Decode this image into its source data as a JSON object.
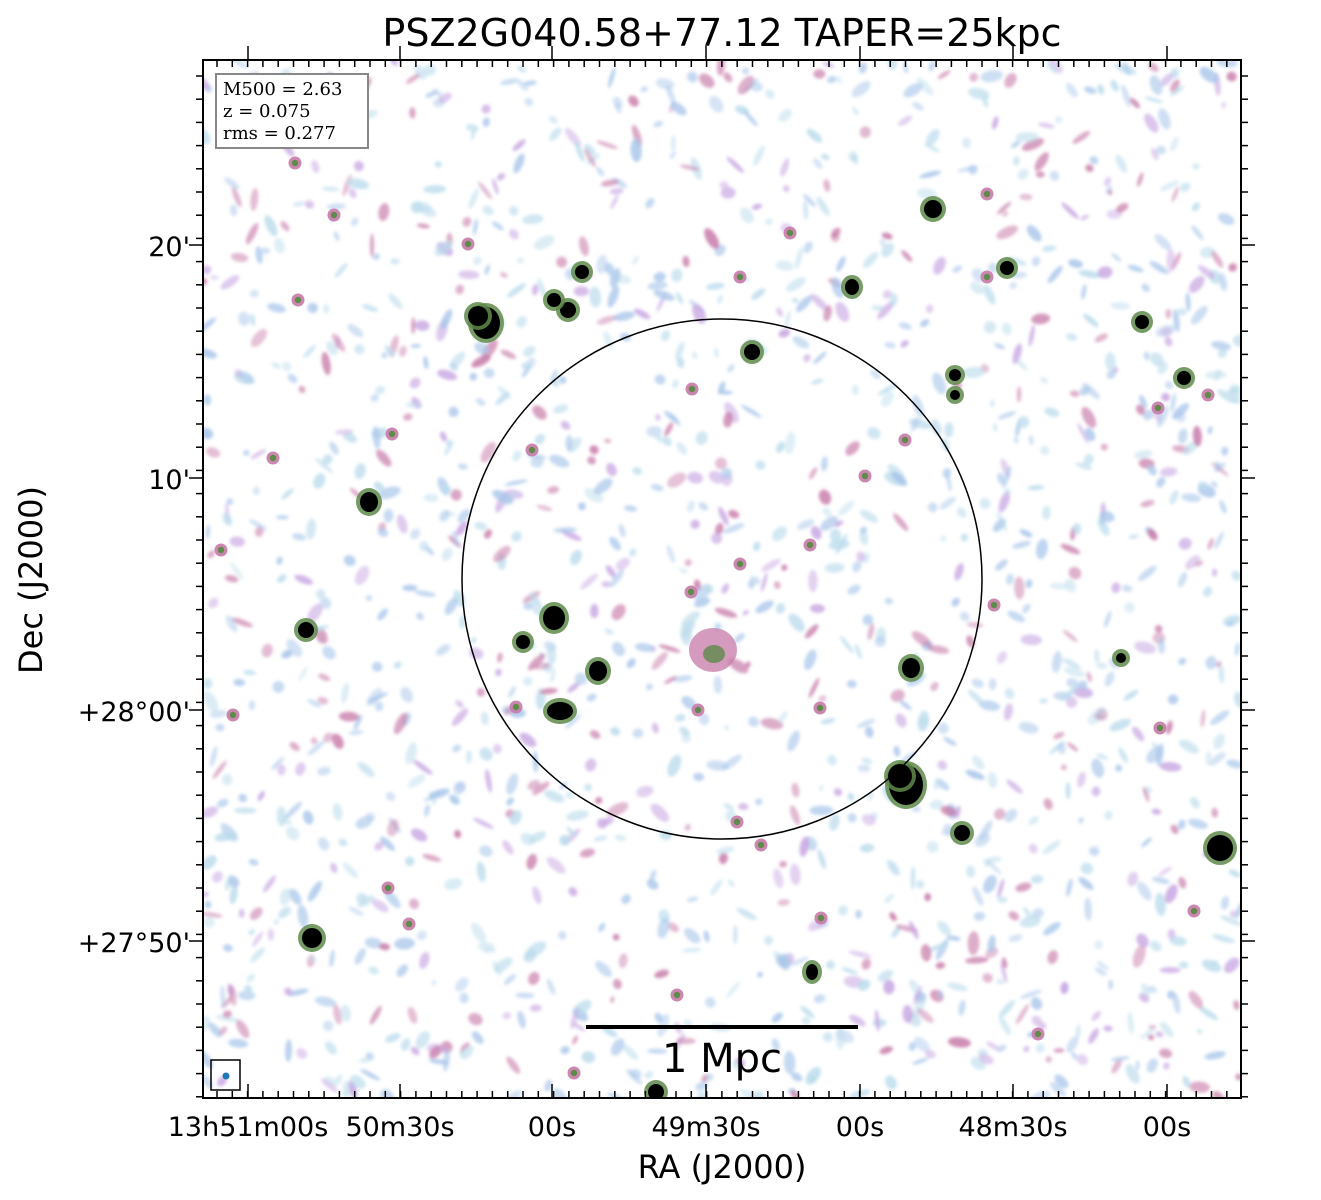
{
  "title": "PSZ2G040.58+77.12 TAPER=25kpc",
  "axes": {
    "xlabel": "RA (J2000)",
    "ylabel": "Dec (J2000)",
    "x_ticks": [
      "13h51m00s",
      "50m30s",
      "00s",
      "49m30s",
      "00s",
      "48m30s",
      "00s"
    ],
    "y_ticks": [
      "20'",
      "10'",
      "+28°00'",
      "+27°50'"
    ]
  },
  "info_box": {
    "line1": "M500 = 2.63",
    "line2": "z = 0.075",
    "line3": "rms = 0.277"
  },
  "scale_bar": {
    "label": "1 Mpc"
  },
  "colors": {
    "noise_light": "#bcdcec",
    "noise_blue": "#a9c6ea",
    "noise_purple": "#c8a6e2",
    "noise_magenta": "#c77aa8",
    "source_green": "#5e8a4a",
    "source_core": "#000000",
    "beam": "#1f77b4"
  }
}
